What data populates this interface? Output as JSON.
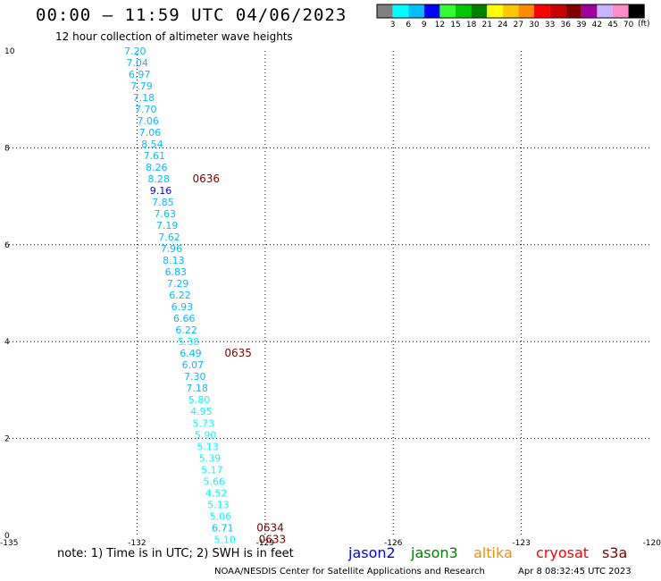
{
  "title": "00:00 – 11:59 UTC 04/06/2023",
  "subtitle": "12 hour collection of altimeter wave heights",
  "colorbar": {
    "colors": [
      "#808080",
      "#00ffff",
      "#00bfff",
      "#0000ff",
      "#32ff32",
      "#00c800",
      "#008000",
      "#ffff00",
      "#ffc800",
      "#ff8c00",
      "#ff0000",
      "#c80000",
      "#800000",
      "#a000a0",
      "#c8b4ff",
      "#ff8cc8",
      "#000000"
    ],
    "labels": [
      "3",
      "6",
      "9",
      "12",
      "15",
      "18",
      "21",
      "24",
      "27",
      "30",
      "33",
      "36",
      "39",
      "42",
      "45",
      "70"
    ],
    "unit": "(ft)"
  },
  "note": "note:  1) Time is in UTC; 2) SWH is in feet",
  "satellites": [
    {
      "name": "jason2",
      "color": "#0000ff"
    },
    {
      "name": "jason3",
      "color": "#008000"
    },
    {
      "name": "altika",
      "color": "#ff8c00"
    },
    {
      "name": "cryosat",
      "color": "#ff0000"
    },
    {
      "name": "s3a",
      "color": "#800000"
    }
  ],
  "footer_left": "NOAA/NESDIS Center for Satellite Applications and Research",
  "footer_right": "Apr  8 08:32:45 UTC 2023",
  "chart_data": {
    "type": "scatter",
    "xlim": [
      -135,
      -120
    ],
    "ylim": [
      0,
      10
    ],
    "x_ticks": [
      "-135",
      "-132",
      "-129",
      "-126",
      "-123",
      "-120"
    ],
    "y_ticks": [
      "0",
      "2",
      "4",
      "6",
      "8",
      "10"
    ],
    "grid": true,
    "points": [
      {
        "x": -132.3,
        "y": 10.0,
        "v": "7.20",
        "color": "#00bfff"
      },
      {
        "x": -132.25,
        "y": 9.76,
        "v": "7.04",
        "color": "#00bfff"
      },
      {
        "x": -132.2,
        "y": 9.52,
        "v": "6.97",
        "color": "#00bfff"
      },
      {
        "x": -132.15,
        "y": 9.28,
        "v": "7.79",
        "color": "#00bfff"
      },
      {
        "x": -132.1,
        "y": 9.04,
        "v": "7.18",
        "color": "#00bfff"
      },
      {
        "x": -132.05,
        "y": 8.8,
        "v": "7.70",
        "color": "#00bfff"
      },
      {
        "x": -132.0,
        "y": 8.56,
        "v": "7.06",
        "color": "#00bfff"
      },
      {
        "x": -131.95,
        "y": 8.32,
        "v": "7.06",
        "color": "#00bfff"
      },
      {
        "x": -131.9,
        "y": 8.08,
        "v": "8.54",
        "color": "#00bfff"
      },
      {
        "x": -131.85,
        "y": 7.84,
        "v": "7.61",
        "color": "#00bfff"
      },
      {
        "x": -131.8,
        "y": 7.6,
        "v": "8.26",
        "color": "#00bfff"
      },
      {
        "x": -131.75,
        "y": 7.36,
        "v": "8.28",
        "color": "#00bfff"
      },
      {
        "x": -131.7,
        "y": 7.12,
        "v": "9.16",
        "color": "#0000ff"
      },
      {
        "x": -131.65,
        "y": 6.88,
        "v": "7.85",
        "color": "#00bfff"
      },
      {
        "x": -131.6,
        "y": 6.64,
        "v": "7.63",
        "color": "#00bfff"
      },
      {
        "x": -131.55,
        "y": 6.4,
        "v": "7.19",
        "color": "#00bfff"
      },
      {
        "x": -131.5,
        "y": 6.16,
        "v": "7.62",
        "color": "#00bfff"
      },
      {
        "x": -131.45,
        "y": 5.92,
        "v": "7.96",
        "color": "#00bfff"
      },
      {
        "x": -131.4,
        "y": 5.68,
        "v": "8.13",
        "color": "#00bfff"
      },
      {
        "x": -131.35,
        "y": 5.44,
        "v": "6.83",
        "color": "#00bfff"
      },
      {
        "x": -131.3,
        "y": 5.2,
        "v": "7.29",
        "color": "#00bfff"
      },
      {
        "x": -131.25,
        "y": 4.96,
        "v": "6.22",
        "color": "#00bfff"
      },
      {
        "x": -131.2,
        "y": 4.72,
        "v": "6.93",
        "color": "#00bfff"
      },
      {
        "x": -131.15,
        "y": 4.48,
        "v": "6.66",
        "color": "#00bfff"
      },
      {
        "x": -131.1,
        "y": 4.24,
        "v": "6.22",
        "color": "#00bfff"
      },
      {
        "x": -131.05,
        "y": 4.0,
        "v": "5.38",
        "color": "#00ffff"
      },
      {
        "x": -131.0,
        "y": 3.76,
        "v": "6.49",
        "color": "#00bfff"
      },
      {
        "x": -130.95,
        "y": 3.52,
        "v": "6.07",
        "color": "#00bfff"
      },
      {
        "x": -130.9,
        "y": 3.28,
        "v": "7.30",
        "color": "#00bfff"
      },
      {
        "x": -130.85,
        "y": 3.04,
        "v": "7.18",
        "color": "#00bfff"
      },
      {
        "x": -130.8,
        "y": 2.8,
        "v": "5.80",
        "color": "#00ffff"
      },
      {
        "x": -130.75,
        "y": 2.56,
        "v": "4.95",
        "color": "#00ffff"
      },
      {
        "x": -130.7,
        "y": 2.32,
        "v": "5.73",
        "color": "#00ffff"
      },
      {
        "x": -130.65,
        "y": 2.08,
        "v": "5.90",
        "color": "#00ffff"
      },
      {
        "x": -130.6,
        "y": 1.84,
        "v": "5.13",
        "color": "#00ffff"
      },
      {
        "x": -130.55,
        "y": 1.6,
        "v": "5.39",
        "color": "#00ffff"
      },
      {
        "x": -130.5,
        "y": 1.36,
        "v": "5.17",
        "color": "#00ffff"
      },
      {
        "x": -130.45,
        "y": 1.12,
        "v": "5.66",
        "color": "#00ffff"
      },
      {
        "x": -130.4,
        "y": 0.88,
        "v": "4.52",
        "color": "#00ffff"
      },
      {
        "x": -130.35,
        "y": 0.64,
        "v": "5.13",
        "color": "#00ffff"
      },
      {
        "x": -130.3,
        "y": 0.4,
        "v": "5.06",
        "color": "#00ffff"
      },
      {
        "x": -130.25,
        "y": 0.16,
        "v": "6.71",
        "color": "#00bfff"
      },
      {
        "x": -130.2,
        "y": -0.08,
        "v": "5.10",
        "color": "#00ffff"
      }
    ],
    "time_labels": [
      {
        "x": -130.7,
        "y": 7.36,
        "v": "0636",
        "color": "#800000"
      },
      {
        "x": -129.95,
        "y": 3.76,
        "v": "0635",
        "color": "#800000"
      },
      {
        "x": -129.2,
        "y": 0.16,
        "v": "0634",
        "color": "#800000"
      },
      {
        "x": -129.15,
        "y": -0.08,
        "v": "0633",
        "color": "#800000"
      }
    ]
  }
}
